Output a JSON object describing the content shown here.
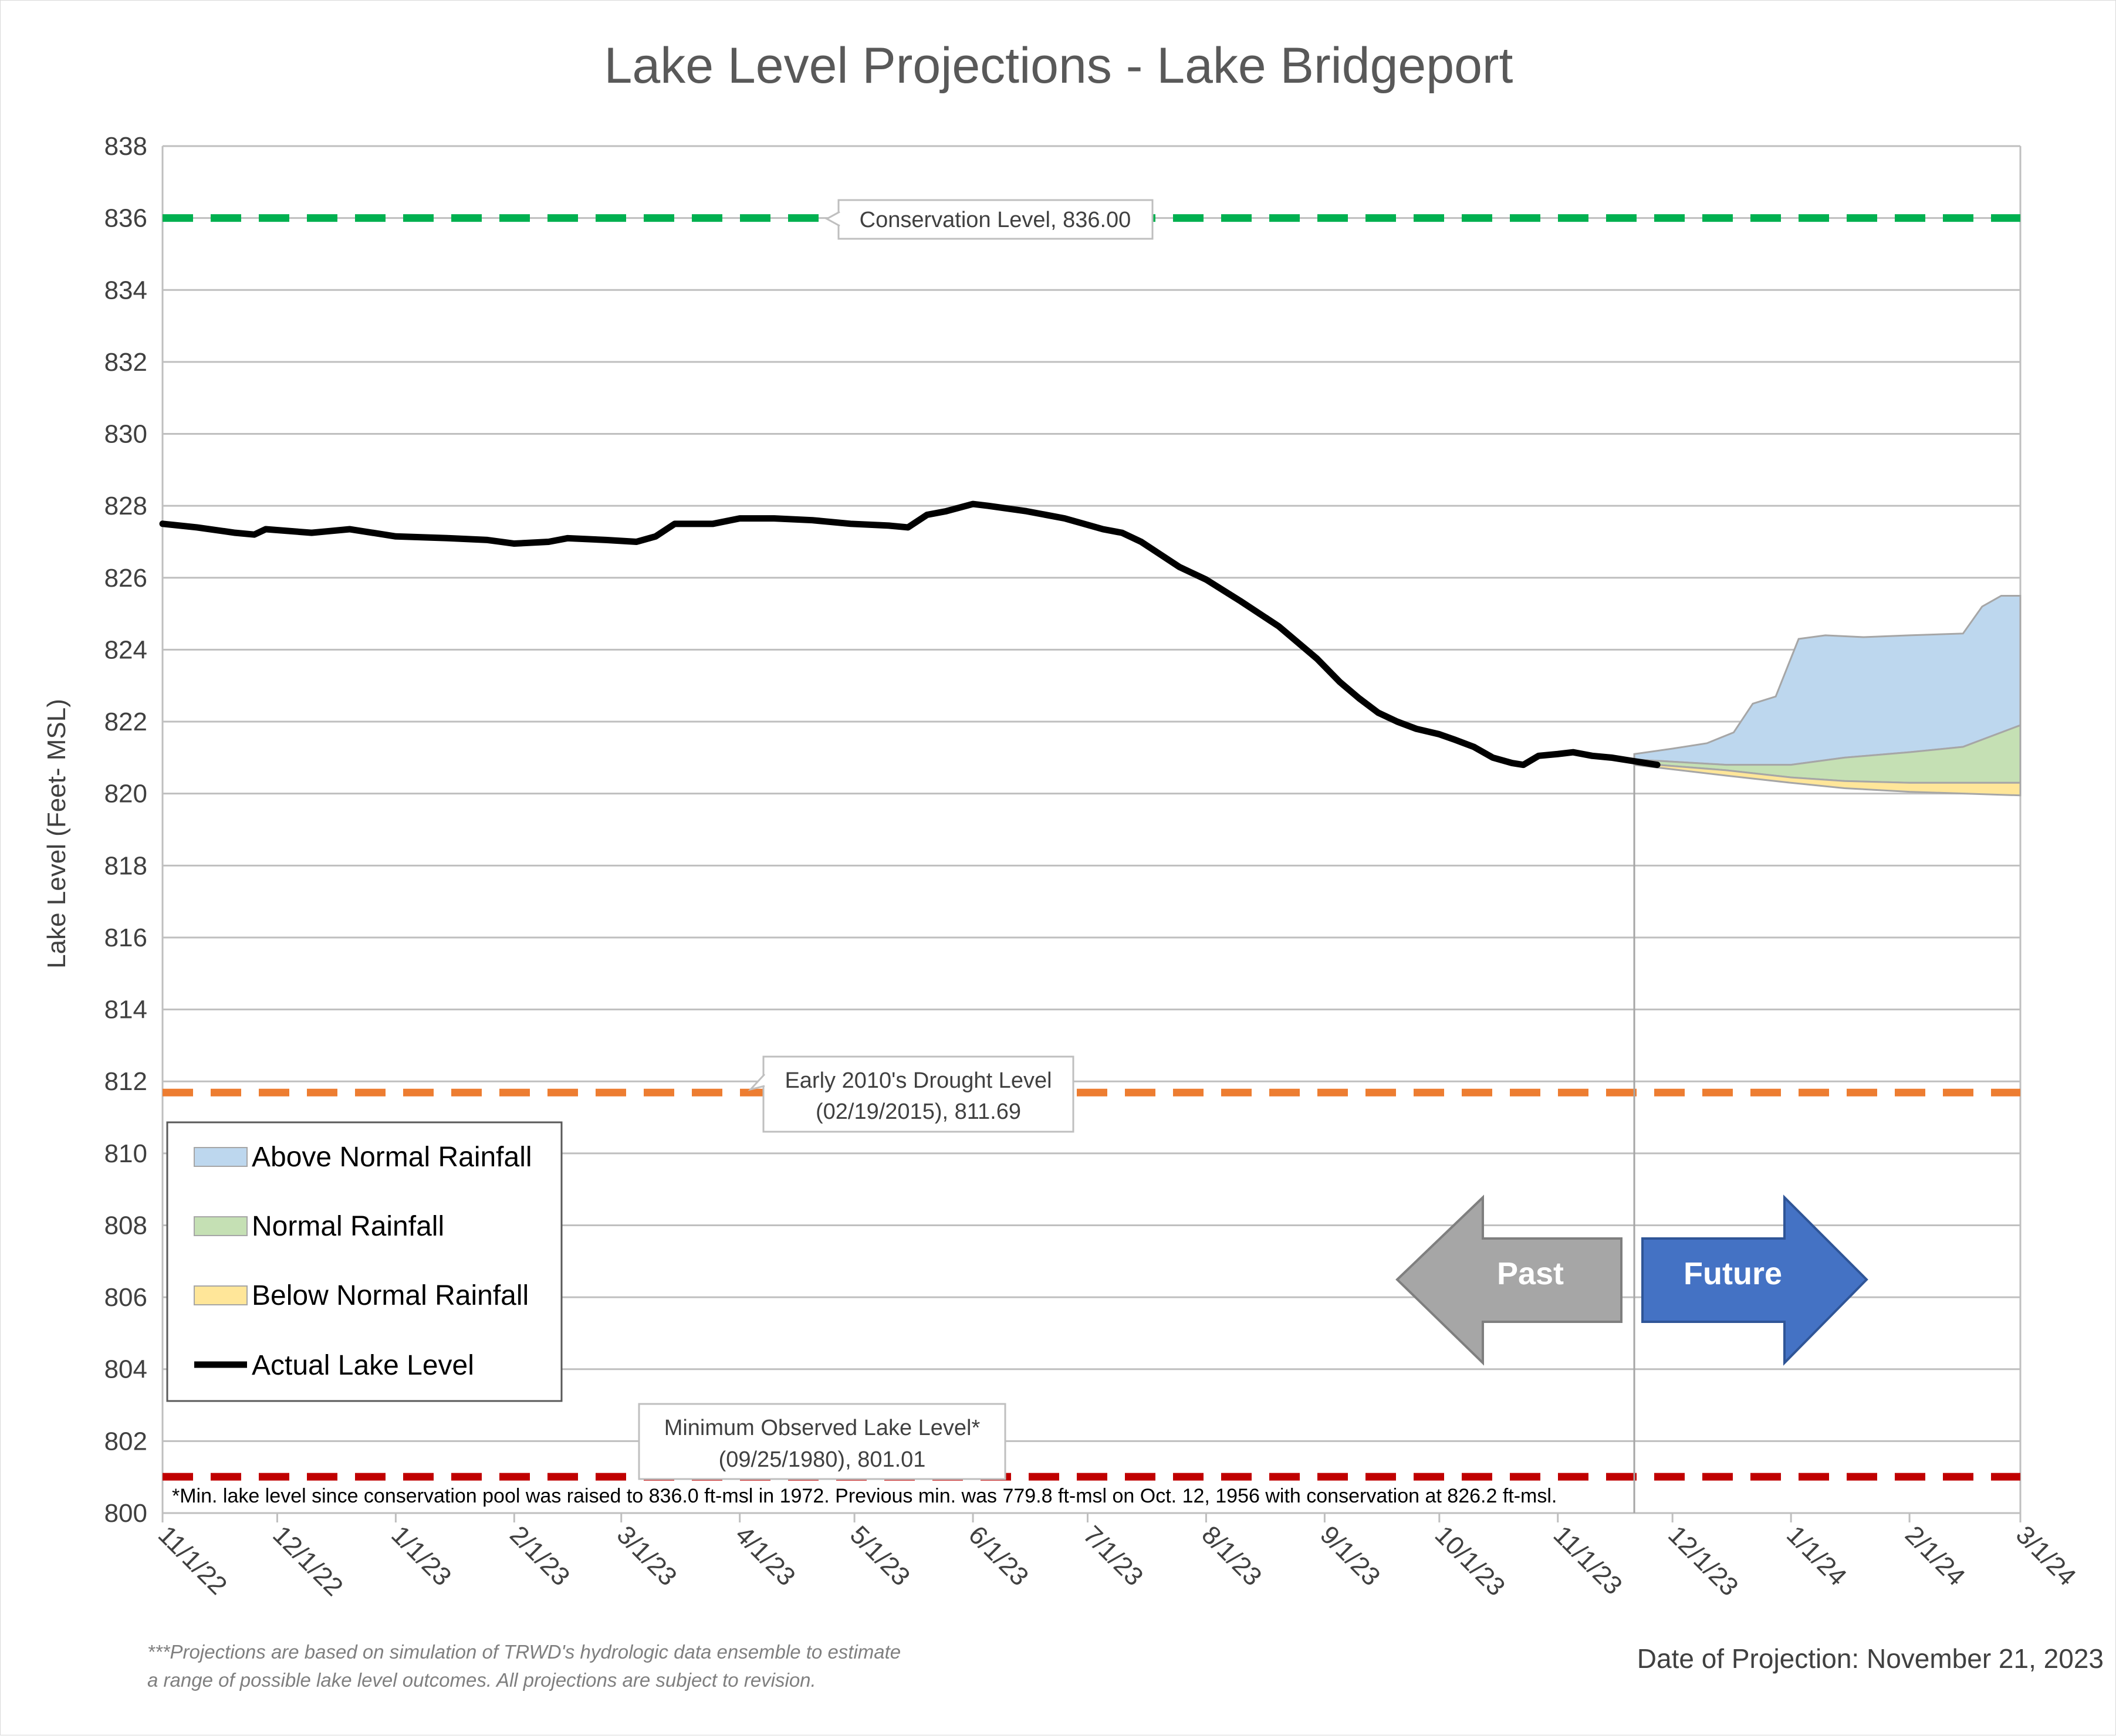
{
  "chart_data": {
    "type": "line",
    "title": "Lake Level Projections - Lake Bridgeport",
    "ylabel": "Lake Level (Feet- MSL)",
    "xlabel": "",
    "ylim": [
      800,
      838
    ],
    "y_ticks": [
      "800",
      "802",
      "804",
      "806",
      "808",
      "810",
      "812",
      "814",
      "816",
      "818",
      "820",
      "822",
      "824",
      "826",
      "828",
      "830",
      "832",
      "834",
      "836",
      "838"
    ],
    "x_ticks": [
      {
        "label": "11/1/22",
        "date": "2022-11-01"
      },
      {
        "label": "12/1/22",
        "date": "2022-12-01"
      },
      {
        "label": "1/1/23",
        "date": "2023-01-01"
      },
      {
        "label": "2/1/23",
        "date": "2023-02-01"
      },
      {
        "label": "3/1/23",
        "date": "2023-03-01"
      },
      {
        "label": "4/1/23",
        "date": "2023-04-01"
      },
      {
        "label": "5/1/23",
        "date": "2023-05-01"
      },
      {
        "label": "6/1/23",
        "date": "2023-06-01"
      },
      {
        "label": "7/1/23",
        "date": "2023-07-01"
      },
      {
        "label": "8/1/23",
        "date": "2023-08-01"
      },
      {
        "label": "9/1/23",
        "date": "2023-09-01"
      },
      {
        "label": "10/1/23",
        "date": "2023-10-01"
      },
      {
        "label": "11/1/23",
        "date": "2023-11-01"
      },
      {
        "label": "12/1/23",
        "date": "2023-12-01"
      },
      {
        "label": "1/1/24",
        "date": "2024-01-01"
      },
      {
        "label": "2/1/24",
        "date": "2024-02-01"
      },
      {
        "label": "3/1/24",
        "date": "2024-03-01"
      }
    ],
    "grid": true,
    "legend_position": "bottom-left",
    "reference_lines": [
      {
        "name": "Conservation Level",
        "value": 836.0,
        "color": "#00b050",
        "label": "Conservation Level, 836.00"
      },
      {
        "name": "Early 2010's Drought Level",
        "value": 811.69,
        "color": "#ed7d31",
        "label_line1": "Early 2010's Drought Level",
        "label_line2": "(02/19/2015), 811.69"
      },
      {
        "name": "Minimum Observed Lake Level",
        "value": 801.01,
        "color": "#c00000",
        "label_line1": "Minimum Observed Lake Level*",
        "label_line2": "(09/25/1980), 801.01"
      }
    ],
    "projection_start": "2023-11-21",
    "series": [
      {
        "name": "Actual Lake Level",
        "color": "#000000",
        "points": [
          [
            "2022-11-01",
            827.5
          ],
          [
            "2022-11-10",
            827.4
          ],
          [
            "2022-11-20",
            827.25
          ],
          [
            "2022-11-25",
            827.2
          ],
          [
            "2022-11-28",
            827.35
          ],
          [
            "2022-12-10",
            827.25
          ],
          [
            "2022-12-15",
            827.3
          ],
          [
            "2022-12-20",
            827.35
          ],
          [
            "2023-01-01",
            827.15
          ],
          [
            "2023-01-15",
            827.1
          ],
          [
            "2023-01-25",
            827.05
          ],
          [
            "2023-02-01",
            826.95
          ],
          [
            "2023-02-10",
            827.0
          ],
          [
            "2023-02-15",
            827.1
          ],
          [
            "2023-02-25",
            827.05
          ],
          [
            "2023-03-05",
            827.0
          ],
          [
            "2023-03-10",
            827.15
          ],
          [
            "2023-03-15",
            827.5
          ],
          [
            "2023-03-25",
            827.5
          ],
          [
            "2023-04-01",
            827.65
          ],
          [
            "2023-04-10",
            827.65
          ],
          [
            "2023-04-20",
            827.6
          ],
          [
            "2023-04-30",
            827.5
          ],
          [
            "2023-05-10",
            827.45
          ],
          [
            "2023-05-15",
            827.4
          ],
          [
            "2023-05-20",
            827.75
          ],
          [
            "2023-05-25",
            827.85
          ],
          [
            "2023-06-01",
            828.05
          ],
          [
            "2023-06-05",
            828.0
          ],
          [
            "2023-06-15",
            827.85
          ],
          [
            "2023-06-25",
            827.65
          ],
          [
            "2023-07-05",
            827.35
          ],
          [
            "2023-07-10",
            827.25
          ],
          [
            "2023-07-15",
            827.0
          ],
          [
            "2023-07-20",
            826.65
          ],
          [
            "2023-07-25",
            826.3
          ],
          [
            "2023-08-01",
            825.95
          ],
          [
            "2023-08-10",
            825.35
          ],
          [
            "2023-08-20",
            824.65
          ],
          [
            "2023-08-30",
            823.75
          ],
          [
            "2023-09-05",
            823.1
          ],
          [
            "2023-09-10",
            822.65
          ],
          [
            "2023-09-15",
            822.25
          ],
          [
            "2023-09-20",
            822.0
          ],
          [
            "2023-09-25",
            821.8
          ],
          [
            "2023-10-01",
            821.65
          ],
          [
            "2023-10-05",
            821.5
          ],
          [
            "2023-10-10",
            821.3
          ],
          [
            "2023-10-15",
            821.0
          ],
          [
            "2023-10-20",
            820.85
          ],
          [
            "2023-10-23",
            820.8
          ],
          [
            "2023-10-27",
            821.05
          ],
          [
            "2023-11-01",
            821.1
          ],
          [
            "2023-11-05",
            821.15
          ],
          [
            "2023-11-10",
            821.05
          ],
          [
            "2023-11-15",
            821.0
          ],
          [
            "2023-11-21",
            820.9
          ],
          [
            "2023-11-27",
            820.8
          ]
        ]
      },
      {
        "name": "Above Normal Rainfall",
        "color": "#bdd7ee",
        "edge": "#a6a6a6",
        "upper": [
          [
            "2023-11-21",
            821.1
          ],
          [
            "2023-12-01",
            821.25
          ],
          [
            "2023-12-10",
            821.4
          ],
          [
            "2023-12-17",
            821.7
          ],
          [
            "2023-12-22",
            822.5
          ],
          [
            "2023-12-28",
            822.7
          ],
          [
            "2024-01-03",
            824.3
          ],
          [
            "2024-01-10",
            824.4
          ],
          [
            "2024-01-20",
            824.35
          ],
          [
            "2024-02-01",
            824.4
          ],
          [
            "2024-02-15",
            824.45
          ],
          [
            "2024-02-20",
            825.2
          ],
          [
            "2024-02-25",
            825.5
          ],
          [
            "2024-03-01",
            825.5
          ]
        ],
        "lower": [
          [
            "2023-11-21",
            820.95
          ],
          [
            "2023-12-15",
            820.8
          ],
          [
            "2024-01-01",
            820.8
          ],
          [
            "2024-01-15",
            821.0
          ],
          [
            "2024-02-01",
            821.15
          ],
          [
            "2024-02-15",
            821.3
          ],
          [
            "2024-03-01",
            821.9
          ]
        ]
      },
      {
        "name": "Normal Rainfall",
        "color": "#c5e0b4",
        "edge": "#a6a6a6",
        "upper": [
          [
            "2023-11-21",
            820.95
          ],
          [
            "2023-12-15",
            820.8
          ],
          [
            "2024-01-01",
            820.8
          ],
          [
            "2024-01-15",
            821.0
          ],
          [
            "2024-02-01",
            821.15
          ],
          [
            "2024-02-15",
            821.3
          ],
          [
            "2024-03-01",
            821.9
          ]
        ],
        "lower": [
          [
            "2023-11-21",
            820.85
          ],
          [
            "2023-12-15",
            820.65
          ],
          [
            "2024-01-01",
            820.45
          ],
          [
            "2024-01-15",
            820.35
          ],
          [
            "2024-02-01",
            820.3
          ],
          [
            "2024-03-01",
            820.3
          ]
        ]
      },
      {
        "name": "Below Normal Rainfall",
        "color": "#ffe699",
        "edge": "#a6a6a6",
        "upper": [
          [
            "2023-11-21",
            820.85
          ],
          [
            "2023-12-15",
            820.65
          ],
          [
            "2024-01-01",
            820.45
          ],
          [
            "2024-01-15",
            820.35
          ],
          [
            "2024-02-01",
            820.3
          ],
          [
            "2024-03-01",
            820.3
          ]
        ],
        "lower": [
          [
            "2023-11-21",
            820.8
          ],
          [
            "2023-12-15",
            820.5
          ],
          [
            "2024-01-01",
            820.3
          ],
          [
            "2024-01-15",
            820.15
          ],
          [
            "2024-02-01",
            820.05
          ],
          [
            "2024-03-01",
            819.95
          ]
        ]
      }
    ]
  },
  "legend": {
    "items": [
      {
        "label": "Above Normal Rainfall",
        "color": "#bdd7ee",
        "kind": "swatch"
      },
      {
        "label": "Normal Rainfall",
        "color": "#c5e0b4",
        "kind": "swatch"
      },
      {
        "label": "Below Normal Rainfall",
        "color": "#ffe699",
        "kind": "swatch"
      },
      {
        "label": "Actual Lake Level",
        "color": "#000000",
        "kind": "line"
      }
    ]
  },
  "arrows": {
    "past": {
      "label": "Past",
      "color": "#a6a6a6"
    },
    "future": {
      "label": "Future",
      "color": "#4472c4"
    }
  },
  "footnote": "*Min. lake level since conservation pool was raised to 836.0 ft-msl in 1972.  Previous min. was 779.8 ft-msl on Oct. 12, 1956 with conservation at 826.2 ft-msl.",
  "note_line1": "***Projections are based on simulation of TRWD's hydrologic data ensemble to estimate",
  "note_line2": "a range of possible lake level outcomes.  All projections are subject to revision.",
  "date_of_projection": "Date of Projection: November 21, 2023"
}
